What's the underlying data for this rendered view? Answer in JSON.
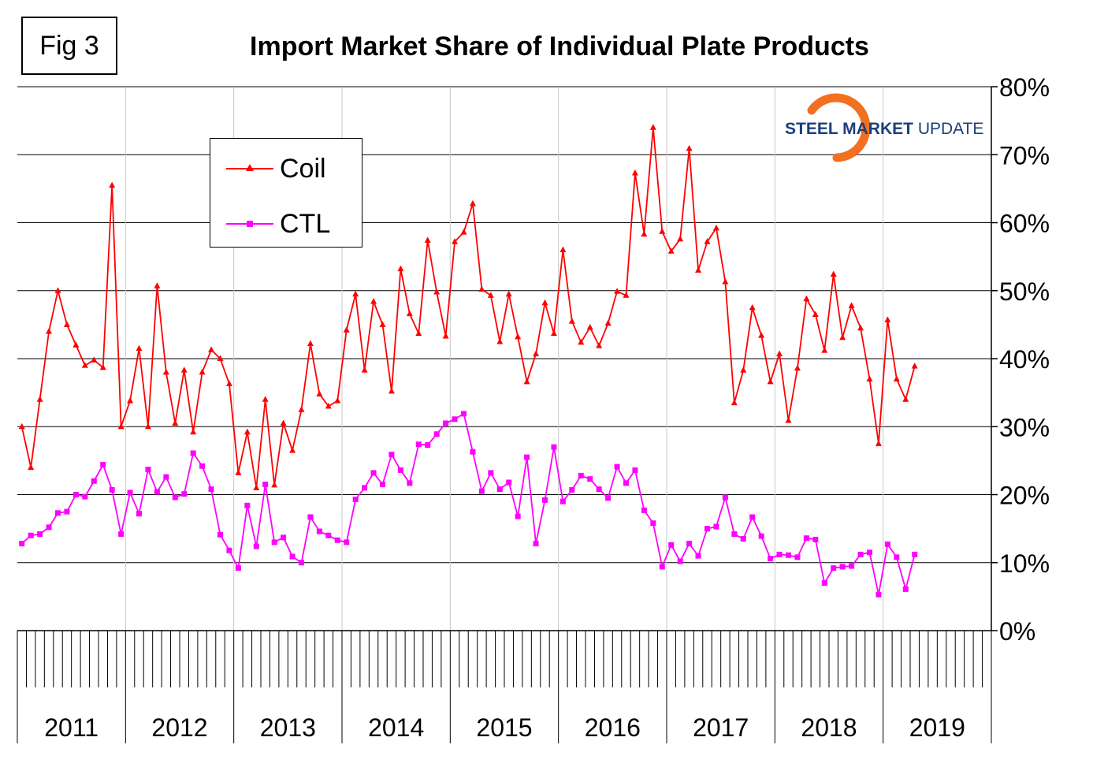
{
  "figure_label": "Fig 3",
  "logo": {
    "bold_text": "STEEL MARKET",
    "light_text": "UPDATE"
  },
  "colors": {
    "coil": "#ff0000",
    "ctl": "#ff00ff",
    "logo_blue": "#1c3f7c",
    "logo_orange": "#f37021"
  },
  "chart_data": {
    "type": "line",
    "title": "Import Market Share of Individual Plate Products",
    "xlabel": "",
    "ylabel": "",
    "ylim": [
      0,
      80
    ],
    "y_ticks": [
      "0%",
      "10%",
      "20%",
      "30%",
      "40%",
      "50%",
      "60%",
      "70%",
      "80%"
    ],
    "year_labels": [
      "2011",
      "2012",
      "2013",
      "2014",
      "2015",
      "2016",
      "2017",
      "2018",
      "2019"
    ],
    "months_per_year": 12,
    "grid": true,
    "legend": "upper-left",
    "series": [
      {
        "name": "Coil",
        "marker": "triangle",
        "values": [
          30,
          24,
          34,
          44,
          50,
          45,
          42,
          39,
          39.8,
          38.7,
          65.5,
          30,
          33.8,
          41.5,
          30,
          50.7,
          38,
          30.5,
          38.3,
          29.2,
          38,
          41.3,
          40,
          36.3,
          23.2,
          29.2,
          21,
          34,
          21.4,
          30.5,
          26.5,
          32.5,
          42.2,
          34.8,
          33,
          33.8,
          44.2,
          49.5,
          38.3,
          48.4,
          45,
          35.2,
          53.2,
          46.6,
          43.7,
          57.4,
          49.8,
          43.3,
          57.2,
          58.6,
          62.8,
          50.2,
          49.3,
          42.5,
          49.5,
          43.2,
          36.6,
          40.7,
          48.2,
          43.7,
          56,
          45.5,
          42.4,
          44.6,
          41.9,
          45.2,
          49.9,
          49.3,
          67.3,
          58.3,
          74,
          58.7,
          55.8,
          57.6,
          70.9,
          53,
          57.2,
          59.2,
          51.3,
          33.5,
          38.3,
          47.5,
          43.4,
          36.6,
          40.7,
          30.9,
          38.6,
          48.8,
          46.5,
          41.2,
          52.4,
          43.1,
          47.8,
          44.5,
          37,
          27.5,
          45.7,
          37,
          34,
          38.9
        ]
      },
      {
        "name": "CTL",
        "marker": "square",
        "values": [
          12.8,
          14,
          14.2,
          15.2,
          17.3,
          17.5,
          20,
          19.7,
          22,
          24.4,
          20.7,
          14.2,
          20.3,
          17.2,
          23.7,
          20.4,
          22.6,
          19.6,
          20.1,
          26.1,
          24.2,
          20.8,
          14.1,
          11.8,
          9.2,
          18.4,
          12.4,
          21.5,
          13,
          13.7,
          10.9,
          10,
          16.7,
          14.6,
          14,
          13.3,
          13,
          19.3,
          21,
          23.2,
          21.5,
          25.9,
          23.6,
          21.7,
          27.4,
          27.3,
          28.9,
          30.5,
          31.1,
          31.9,
          26.3,
          20.5,
          23.2,
          20.8,
          21.8,
          16.8,
          25.5,
          12.8,
          19.2,
          27,
          19,
          20.7,
          22.8,
          22.3,
          20.8,
          19.5,
          24.1,
          21.7,
          23.6,
          17.7,
          15.8,
          9.4,
          12.6,
          10.2,
          12.8,
          11,
          15,
          15.3,
          19.6,
          14.2,
          13.5,
          16.7,
          13.9,
          10.6,
          11.2,
          11.1,
          10.8,
          13.6,
          13.4,
          7,
          9.2,
          9.4,
          9.5,
          11.2,
          11.5,
          5.3,
          12.7,
          10.8,
          6.1,
          11.2
        ]
      }
    ]
  }
}
